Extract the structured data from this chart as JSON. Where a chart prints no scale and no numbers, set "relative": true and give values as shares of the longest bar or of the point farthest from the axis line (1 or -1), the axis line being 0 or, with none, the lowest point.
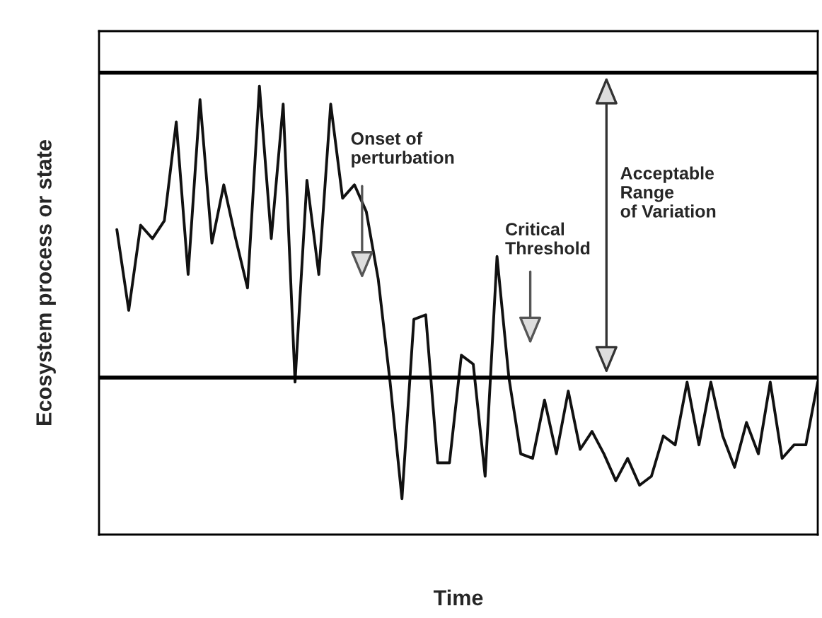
{
  "chart_data": {
    "type": "line",
    "relative": true,
    "xlabel": "Time",
    "ylabel": "Ecosystem process or state",
    "categories": [
      null,
      null,
      null,
      null,
      null,
      null,
      null,
      null,
      null,
      null,
      null,
      null,
      null,
      null,
      null,
      null,
      null,
      null,
      null,
      null,
      null,
      null,
      null,
      null,
      null,
      null,
      null,
      null,
      null,
      null,
      null,
      null,
      null,
      null,
      null,
      null,
      null,
      null,
      null,
      null,
      null,
      null,
      null,
      null,
      null,
      null,
      null,
      null,
      null,
      null,
      null,
      null,
      null,
      null,
      null,
      null,
      null,
      null,
      null,
      null
    ],
    "series": [
      {
        "color": "#111111",
        "values": [
          0.68,
          0.5,
          0.69,
          0.66,
          0.7,
          0.92,
          0.58,
          0.97,
          0.65,
          0.78,
          0.66,
          0.55,
          1.0,
          0.66,
          0.96,
          0.34,
          0.79,
          0.58,
          0.96,
          0.75,
          0.78,
          0.72,
          0.57,
          0.34,
          0.08,
          0.48,
          0.49,
          0.16,
          0.16,
          0.4,
          0.38,
          0.13,
          0.62,
          0.35,
          0.18,
          0.17,
          0.3,
          0.18,
          0.32,
          0.19,
          0.23,
          0.18,
          0.12,
          0.17,
          0.11,
          0.13,
          0.22,
          0.2,
          0.34,
          0.2,
          0.34,
          0.22,
          0.15,
          0.25,
          0.18,
          0.34,
          0.17,
          0.2,
          0.2,
          0.34
        ]
      }
    ],
    "ref_lines": [
      {
        "axis": "y",
        "value": 1.03,
        "color": "#000000"
      },
      {
        "axis": "y",
        "value": 0.35,
        "color": "#000000"
      }
    ],
    "annotations": [
      "Onset of\nperturbation",
      "Critical\nThreshold",
      "Acceptable\nRange\nof Variation"
    ],
    "legend": false,
    "marker": "none",
    "line_style": "solid"
  }
}
